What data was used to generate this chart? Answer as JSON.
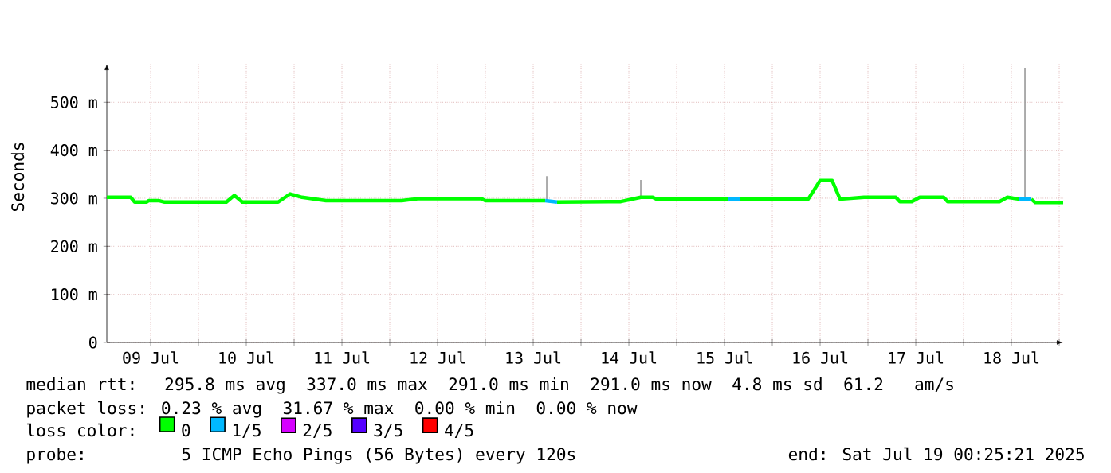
{
  "chart_data": {
    "type": "line",
    "ylabel": "Seconds",
    "xlim": [
      "2025-07-09T01:00",
      "2025-07-19T01:00"
    ],
    "xticks": [
      {
        "value": "2025-07-10T00:00",
        "label": null
      },
      {
        "value": "2025-07-11T00:00",
        "label": null
      },
      {
        "value": "2025-07-12T00:00",
        "label": null
      },
      {
        "value": "2025-07-13T00:00",
        "label": null
      },
      {
        "value": "2025-07-14T00:00",
        "label": null
      },
      {
        "value": "2025-07-15T00:00",
        "label": null
      },
      {
        "value": "2025-07-16T00:00",
        "label": null
      },
      {
        "value": "2025-07-17T00:00",
        "label": null
      },
      {
        "value": "2025-07-18T00:00",
        "label": null
      },
      {
        "value": "2025-07-19T00:00",
        "label": null
      },
      {
        "value": "2025-07-09T12:00",
        "label": "09 Jul"
      },
      {
        "value": "2025-07-10T12:00",
        "label": "10 Jul"
      },
      {
        "value": "2025-07-11T12:00",
        "label": "11 Jul"
      },
      {
        "value": "2025-07-12T12:00",
        "label": "12 Jul"
      },
      {
        "value": "2025-07-13T12:00",
        "label": "13 Jul"
      },
      {
        "value": "2025-07-14T12:00",
        "label": "14 Jul"
      },
      {
        "value": "2025-07-15T12:00",
        "label": "15 Jul"
      },
      {
        "value": "2025-07-16T12:00",
        "label": "16 Jul"
      },
      {
        "value": "2025-07-17T12:00",
        "label": "17 Jul"
      },
      {
        "value": "2025-07-18T12:00",
        "label": "18 Jul"
      }
    ],
    "ylim": [
      0,
      580
    ],
    "yticks": [
      0,
      {
        "value": 100,
        "label": "100 m"
      },
      {
        "value": 200,
        "label": "200 m"
      },
      {
        "value": 300,
        "label": "300 m"
      },
      {
        "value": 400,
        "label": "400 m"
      },
      {
        "value": 500,
        "label": "500 m"
      }
    ],
    "grid": true,
    "legend": "bottom",
    "legend_title": "loss color:",
    "series": [
      {
        "color": "#999999",
        "x": [
          "2025-07-13T15:24",
          "2025-07-13T15:24",
          "2025-07-13T15:30",
          "2025-07-14T15:00",
          "2025-07-14T15:00",
          "2025-07-14T15:10",
          "2025-07-18T15:24",
          "2025-07-18T15:24"
        ],
        "values": [
          292,
          346,
          null,
          302,
          338,
          null,
          298,
          571
        ]
      },
      {
        "name": "0",
        "color": "#00ff00",
        "x": [
          "2025-07-09T01:00",
          "2025-07-09T07:00",
          "2025-07-09T08:00",
          "2025-07-09T11:00",
          "2025-07-09T11:30",
          "2025-07-09T14:00",
          "2025-07-09T15:30",
          "2025-07-10T07:00",
          "2025-07-10T09:00",
          "2025-07-10T11:00",
          "2025-07-10T20:00",
          "2025-07-10T23:00",
          "2025-07-11T02:00",
          "2025-07-11T08:00",
          "2025-07-12T03:00",
          "2025-07-12T07:00",
          "2025-07-12T23:00",
          "2025-07-13T00:00",
          "2025-07-13T15:00",
          "2025-07-13T15:30",
          "2025-07-13T18:00",
          "2025-07-14T10:00",
          "2025-07-14T15:00",
          "2025-07-14T18:00",
          "2025-07-14T19:00",
          "2025-07-15T13:00",
          "2025-07-15T13:30",
          "2025-07-15T16:00",
          "2025-07-16T09:00",
          "2025-07-16T12:00",
          "2025-07-16T15:00",
          "2025-07-16T17:00",
          "2025-07-16T23:00",
          "2025-07-17T07:00",
          "2025-07-17T08:00",
          "2025-07-17T11:00",
          "2025-07-17T13:00",
          "2025-07-17T19:00",
          "2025-07-17T20:00",
          "2025-07-18T09:00",
          "2025-07-18T11:00",
          "2025-07-18T14:00",
          "2025-07-18T14:30",
          "2025-07-18T17:00",
          "2025-07-18T18:00",
          "2025-07-19T01:00"
        ],
        "values": [
          302,
          302,
          292,
          292,
          295,
          295,
          292,
          292,
          306,
          292,
          292,
          309,
          302,
          295,
          295,
          299,
          299,
          295,
          295,
          null,
          292,
          293,
          302,
          302,
          298,
          298,
          null,
          298,
          298,
          337,
          337,
          298,
          302,
          302,
          293,
          293,
          302,
          302,
          293,
          293,
          302,
          298,
          null,
          298,
          291,
          291
        ]
      },
      {
        "name": "1/5",
        "color": "#00b8ff",
        "x": [
          "2025-07-13T15:00",
          "2025-07-13T18:00",
          "2025-07-13T18:30",
          "2025-07-15T13:00",
          "2025-07-15T16:00",
          "2025-07-15T16:30",
          "2025-07-18T14:00",
          "2025-07-18T17:00"
        ],
        "values": [
          295,
          292,
          null,
          298,
          298,
          null,
          298,
          298
        ]
      },
      {
        "name": "2/5",
        "color": "#d600ff"
      },
      {
        "name": "3/5",
        "color": "#5500ff"
      },
      {
        "name": "4/5",
        "color": "#ff0000"
      }
    ],
    "annotations": [
      "median rtt:  295.8 ms avg  337.0 ms max  291.0 ms min  291.0 ms now  4.8 ms sd  61.2   am/s",
      "packet loss: 0.23 % avg  31.67 % max  0.00 % min  0.00 % now",
      "probe:       5 ICMP Echo Pings (56 Bytes) every 120s",
      "end: Sat Jul 19 00:25:21 2025"
    ]
  }
}
